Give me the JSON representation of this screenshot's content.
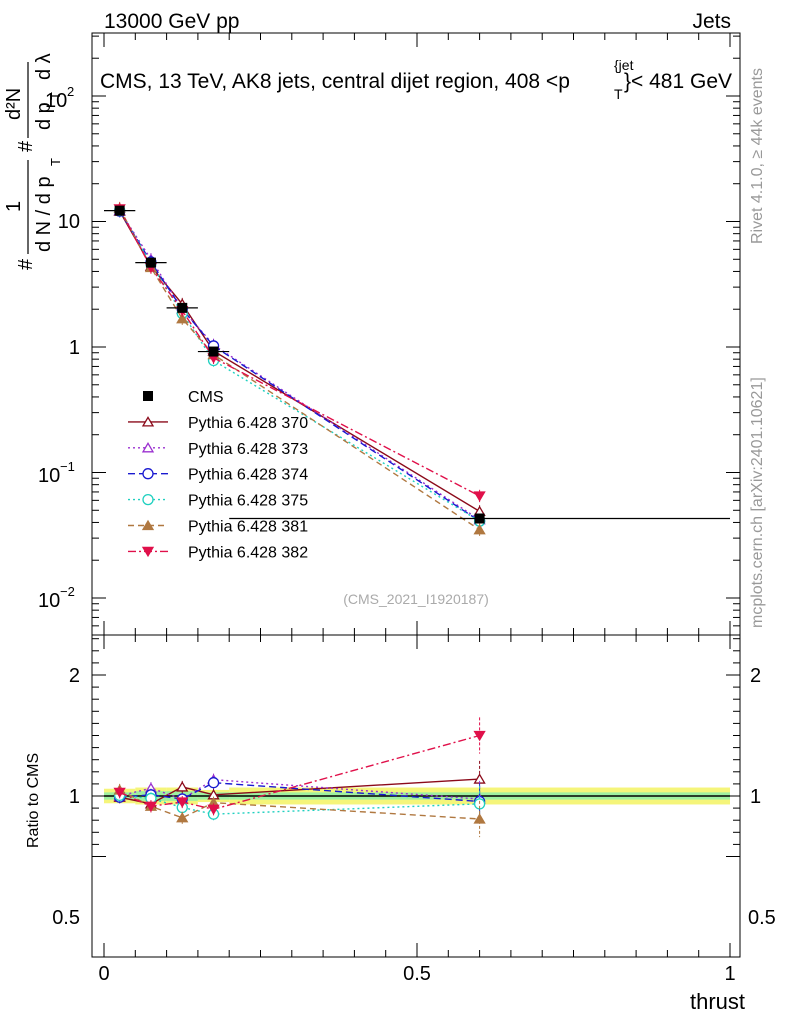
{
  "header": {
    "left": "13000 GeV pp",
    "right": "Jets",
    "title": "CMS, 13 TeV, AK8 jets, central dijet region, 408 <p",
    "title_sup": "{jet",
    "title_sub": "T",
    "title_end": "}< 481 GeV"
  },
  "side": {
    "rivet": "Rivet 4.1.0, ≥ 44k events",
    "mcplots": "mcplots.cern.ch [arXiv:2401.10621]"
  },
  "watermark": "(CMS_2021_I1920187)",
  "axes": {
    "ylabel_parts": [
      "#",
      "1",
      "d N / d p",
      "T",
      "#",
      "d p",
      "T",
      "d²N",
      "d λ"
    ],
    "ratio_ylabel": "Ratio to CMS",
    "xlabel": "thrust",
    "xticks": [
      "0",
      "0.5",
      "1"
    ],
    "ytick_10": "10",
    "ytick_1": "1",
    "ytick_base": "10",
    "ytick_exp_2": "2",
    "ytick_exp_m1": "−1",
    "ytick_exp_m2": "−2",
    "ratio_ticks": [
      "2",
      "1",
      "0.5"
    ]
  },
  "chart_data": {
    "type": "line",
    "title": "CMS, 13 TeV, AK8 jets, central dijet region, 408 < p_T^{jet} < 481 GeV",
    "xlabel": "thrust",
    "ylabel": "1/(dN/dp_T) d²N/(dp_T dλ)",
    "xlim": [
      0,
      1
    ],
    "ylim": [
      0.0055,
      350
    ],
    "yscale": "log",
    "ratio_ylim": [
      0.4,
      2.4
    ],
    "x": [
      0.025,
      0.075,
      0.125,
      0.175,
      0.6
    ],
    "xerr": [
      0.025,
      0.025,
      0.025,
      0.025,
      0.4
    ],
    "data": {
      "name": "CMS",
      "values": [
        12.2,
        4.7,
        2.05,
        0.92,
        0.043
      ],
      "ratio_band_inner": [
        0.03,
        0.04,
        0.04,
        0.03,
        0.03
      ],
      "ratio_band_outer": [
        0.06,
        0.07,
        0.07,
        0.05,
        0.07
      ]
    },
    "series": [
      {
        "name": "Pythia 6.428 370",
        "color": "#8b0a1a",
        "dash": "",
        "marker": "tri-up-open",
        "values": [
          12.1,
          4.4,
          2.2,
          0.93,
          0.049
        ],
        "ratio": [
          0.99,
          0.935,
          1.075,
          1.01,
          1.14
        ]
      },
      {
        "name": "Pythia 6.428 373",
        "color": "#9b30d0",
        "dash": "2,3",
        "marker": "tri-up-open",
        "values": [
          12.2,
          5.0,
          2.0,
          1.04,
          0.042
        ],
        "ratio": [
          1.0,
          1.065,
          0.975,
          1.135,
          0.975
        ]
      },
      {
        "name": "Pythia 6.428 374",
        "color": "#1a1ad0",
        "dash": "7,4",
        "marker": "circle-open",
        "values": [
          12.1,
          4.75,
          2.0,
          1.02,
          0.041
        ],
        "ratio": [
          0.99,
          1.01,
          0.975,
          1.11,
          0.955
        ]
      },
      {
        "name": "Pythia 6.428 375",
        "color": "#20d0c0",
        "dash": "2,3",
        "marker": "circle-open",
        "values": [
          12.3,
          4.6,
          1.85,
          0.78,
          0.041
        ],
        "ratio": [
          1.005,
          0.98,
          0.905,
          0.85,
          0.935
        ]
      },
      {
        "name": "Pythia 6.428 381",
        "color": "#b07840",
        "dash": "6,4",
        "marker": "tri-up-filled",
        "values": [
          12.8,
          4.3,
          1.68,
          0.87,
          0.035
        ],
        "ratio": [
          1.05,
          0.915,
          0.82,
          0.945,
          0.81
        ]
      },
      {
        "name": "Pythia 6.428 382",
        "color": "#e0104a",
        "dash": "8,3,2,3",
        "marker": "tri-down-filled",
        "values": [
          12.6,
          4.3,
          1.95,
          0.82,
          0.065
        ],
        "ratio": [
          1.03,
          0.915,
          0.95,
          0.89,
          1.5
        ]
      }
    ]
  }
}
